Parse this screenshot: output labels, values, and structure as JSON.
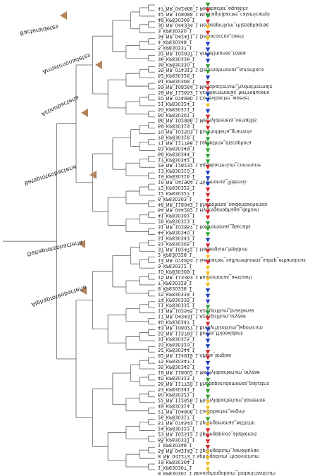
{
  "tree": {
    "clade_labels": [
      "Bacteroidetes",
      "Armatimonadetes",
      "Actinobacteria",
      "Betaproteobacteria",
      "Deltaproteobacteria",
      "Alphaproteobacteria"
    ],
    "leaves": [
      {
        "label": "47_NR_042468_1 Pedobacter_aquatilis",
        "marker": "green"
      },
      {
        "label": "42_NR_108088_1 Mucilaginibacter_calamicampi",
        "marker": "red"
      },
      {
        "label": "48_KP830306_1",
        "marker": "green"
      },
      {
        "label": "30_NR_044334_1 Herbaspirillum_rhizosphaerae",
        "marker": "red"
      },
      {
        "label": "3_KP830350_1",
        "marker": "yellow"
      },
      {
        "label": "34_NR_042411_1 Deinococcus_caeni",
        "marker": "red"
      },
      {
        "label": "4_KP830348_1",
        "marker": "yellow"
      },
      {
        "label": "5_KP830337_1",
        "marker": "blue"
      },
      {
        "label": "32_NR_102837_1 Armatimonas_rosea",
        "marker": "blue"
      },
      {
        "label": "36_KP830336_1",
        "marker": "blue"
      },
      {
        "label": "38_KP830330_1",
        "marker": "blue"
      },
      {
        "label": "39_NR_074313_1 Gemmatimonas_aurantiaca",
        "marker": "green"
      },
      {
        "label": "62_KP830326_1",
        "marker": "green"
      },
      {
        "label": "61_KP830308_1",
        "marker": "blue"
      },
      {
        "label": "59_NR_108264_1 Microbacterium_hydrothermale",
        "marker": "red"
      },
      {
        "label": "58_NR_112653_1 Aciditerrimonas_ferrireducens",
        "marker": "red"
      },
      {
        "label": "20_NR_074890_1 Conexibacter_woesei",
        "marker": "blue"
      },
      {
        "label": "21_KP830324_1",
        "marker": "blue"
      },
      {
        "label": "50_KP830311_1",
        "marker": "yellow"
      },
      {
        "label": "60_KP830301_1",
        "marker": "blue"
      },
      {
        "label": "66_NR_102886_1 Methylotenera_versatilis",
        "marker": "red"
      },
      {
        "label": "69_KP830319_1",
        "marker": "red"
      },
      {
        "label": "70_NR_102503_1 Burkholderia_graminis",
        "marker": "red"
      },
      {
        "label": "78_KP830318_1",
        "marker": "green"
      },
      {
        "label": "71_NR_117766_1 Leptothrix_discophora",
        "marker": "green"
      },
      {
        "label": "63_KP830349_1",
        "marker": "green"
      },
      {
        "label": "68_KP830344_1",
        "marker": "green"
      },
      {
        "label": "17_KP830342_1",
        "marker": "green"
      },
      {
        "label": "29_NR_126232_1 Aquabacterium_commune",
        "marker": "green"
      },
      {
        "label": "13_KP830310_1",
        "marker": "red"
      },
      {
        "label": "19_KP830316_1",
        "marker": "blue"
      },
      {
        "label": "16_NR_041964_1 Thiomonas_fildensis",
        "marker": "blue"
      },
      {
        "label": "72_KP830325_1",
        "marker": "blue"
      },
      {
        "label": "12_KP830327_1",
        "marker": "red"
      },
      {
        "label": "6_KP830303_1",
        "marker": "red"
      },
      {
        "label": "46_NR_118043_1 Rhodoferax_saidenbachensis",
        "marker": "red"
      },
      {
        "label": "64_NR_044282_1 Hydrogenophaga_defluvii",
        "marker": "red"
      },
      {
        "label": "41_KP830302_1",
        "marker": "red"
      },
      {
        "label": "28_KP830313_1",
        "marker": "red"
      },
      {
        "label": "31_NR_102857_1 Polaromonas_glacialis",
        "marker": "green"
      },
      {
        "label": "44_KP830340_1",
        "marker": "green"
      },
      {
        "label": "51_KP830343_1",
        "marker": "green"
      },
      {
        "label": "53_KP830305_1",
        "marker": "blue"
      },
      {
        "label": "37_NR_102472_1 Haliangium_tepidum",
        "marker": "red"
      },
      {
        "label": "2_KP830328_1",
        "marker": "red"
      },
      {
        "label": "14_NR_074854_1 Geobacter_sulfurreducens_subsp_ethanolicus",
        "marker": "yellow"
      },
      {
        "label": "9_KP830312_1",
        "marker": "red"
      },
      {
        "label": "10_KP830309_1",
        "marker": "yellow"
      },
      {
        "label": "15_NR_113363_1 Roseomonas_aestuarii",
        "marker": "yellow"
      },
      {
        "label": "7_KP830329_1",
        "marker": "yellow"
      },
      {
        "label": "8_KP830338_1",
        "marker": "yellow"
      },
      {
        "label": "25_KP830339_1",
        "marker": "blue"
      },
      {
        "label": "74_KP830335_1",
        "marker": "blue"
      },
      {
        "label": "11_KP830332_1",
        "marker": "blue"
      },
      {
        "label": "11_NR_102545_1 Azospirillum_brasilense",
        "marker": "green"
      },
      {
        "label": "17_NR_043431_1 Azospirillum_oryzae",
        "marker": "green"
      },
      {
        "label": "40_KP830347_1",
        "marker": "red"
      },
      {
        "label": "43_NR_108027_1 Bradyrhizobium_japonicum",
        "marker": "red"
      },
      {
        "label": "55_NR_115783_1 Bosea_thiooxidans",
        "marker": "blue"
      },
      {
        "label": "31_KP830315_1",
        "marker": "blue"
      },
      {
        "label": "33_KP830320_1",
        "marker": "blue"
      },
      {
        "label": "52_KP830344_1",
        "marker": "blue"
      },
      {
        "label": "82_NR_114819_1 Afipia_birgiae",
        "marker": "red"
      },
      {
        "label": "75_KP830347_1",
        "marker": "red"
      },
      {
        "label": "35_KP830345_1",
        "marker": "blue"
      },
      {
        "label": "18_NR_118002_1 Methylobacterium_oryzae",
        "marker": "blue"
      },
      {
        "label": "45_KP830323_1",
        "marker": "blue"
      },
      {
        "label": "56_NR_117720_1 Rhodopseudomonas_palustris",
        "marker": "green"
      },
      {
        "label": "53_KP830341_1",
        "marker": "green"
      },
      {
        "label": "60_KP830321_1",
        "marker": "green"
      },
      {
        "label": "22_NR_112626_1 Phenylobacterium_koreense",
        "marker": "green"
      },
      {
        "label": "49_KP830314_1",
        "marker": "yellow"
      },
      {
        "label": "27_NR_104806_1 Caulobacter_segnis",
        "marker": "yellow"
      },
      {
        "label": "26_KP830317_1",
        "marker": "yellow"
      },
      {
        "label": "57_NR_074543_1 Sphingomonas_wittichii",
        "marker": "green"
      },
      {
        "label": "24_KP830322_1",
        "marker": "yellow"
      },
      {
        "label": "23_NR_102512_1 Sphingopyxis_alaskensis",
        "marker": "red"
      },
      {
        "label": "65_KP830331_1",
        "marker": "red"
      },
      {
        "label": "1_KP830346_1",
        "marker": "red"
      },
      {
        "label": "54_NR_042143_1 Sphingobium_yanoikuyae",
        "marker": "red"
      },
      {
        "label": "8_NR_041273_1 Sphingobium_rhizovicinum",
        "marker": "yellow"
      },
      {
        "label": "19_KP830304_1",
        "marker": "yellow"
      },
      {
        "label": "1_KP830307_1",
        "marker": "yellow"
      },
      {
        "label": "8_KP830301_1 Novosphingobium_lindaniclasticum",
        "marker": "yellow"
      }
    ]
  },
  "colors": {
    "green": "#2ca02c",
    "red": "#d62728",
    "blue": "#1f3fbf",
    "yellow": "#f0c020",
    "collapsed_clade": "#b5835a",
    "branch": "#6e6e6e",
    "text": "#222222"
  }
}
